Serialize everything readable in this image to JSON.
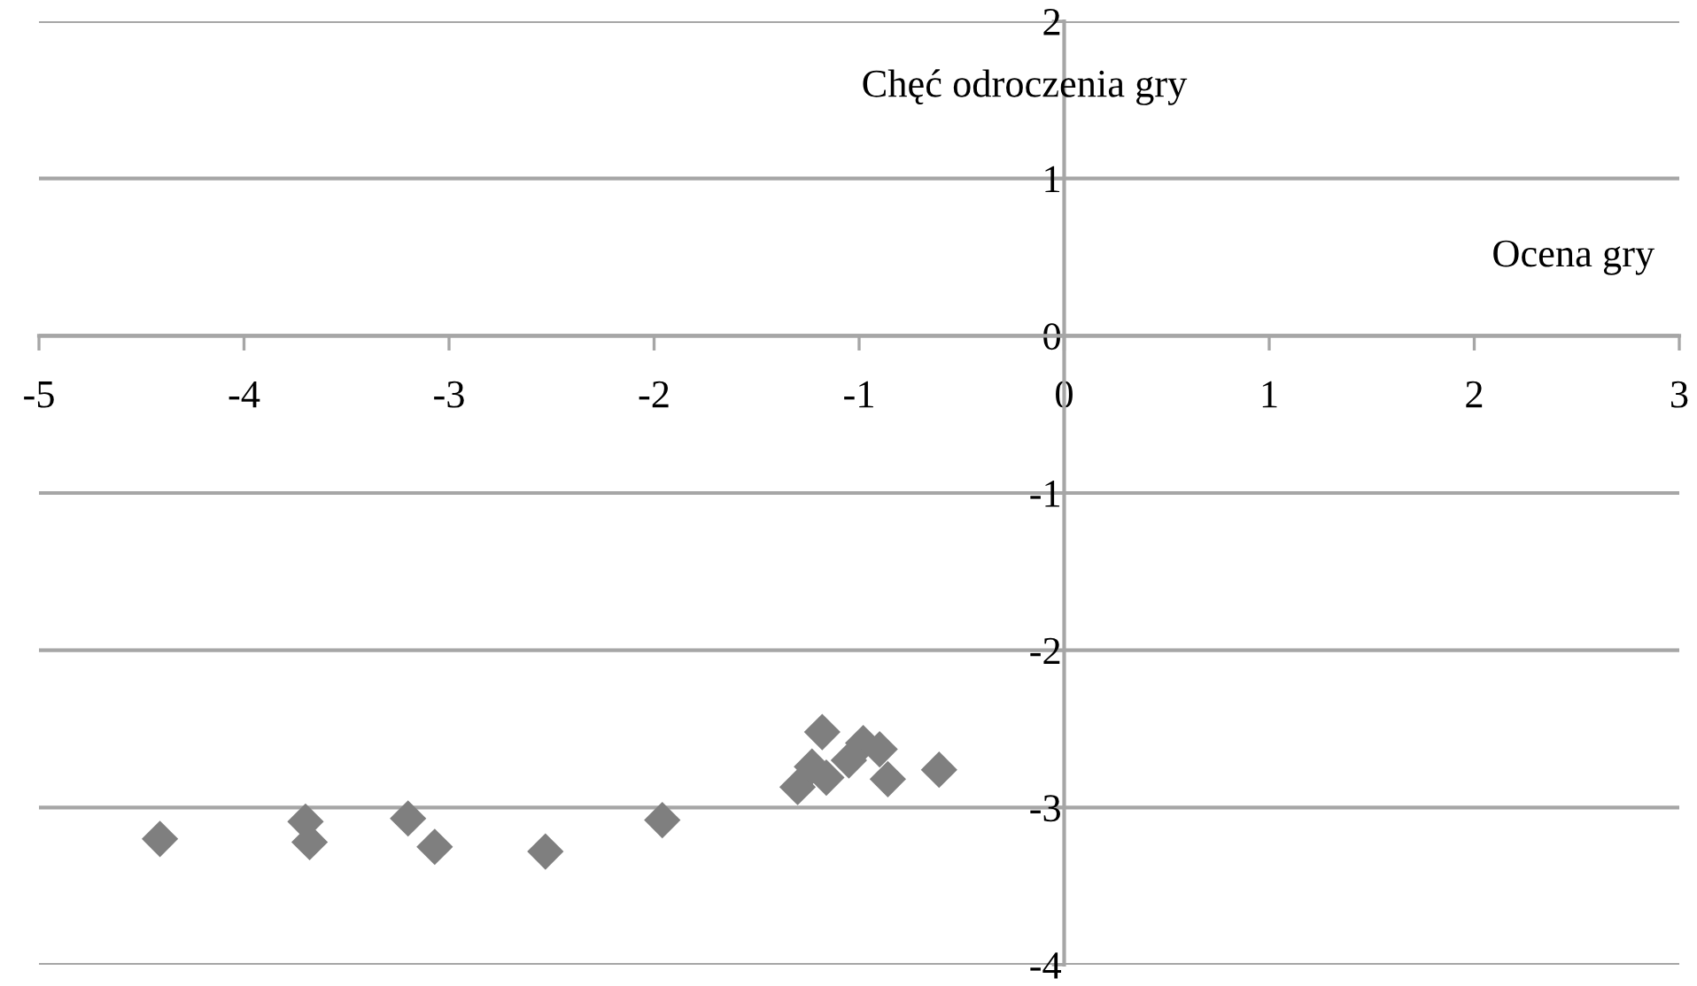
{
  "chart_data": {
    "type": "scatter",
    "xlabel": "Ocena gry",
    "ylabel": "Chęć odroczenia gry",
    "x": [
      -4.41,
      -3.7,
      -3.68,
      -3.2,
      -3.07,
      -2.53,
      -1.96,
      -1.3,
      -1.23,
      -1.18,
      -1.16,
      -1.05,
      -0.98,
      -0.9,
      -0.86,
      -0.61
    ],
    "series": [
      {
        "color": "#7f7f7f",
        "values": [
          -3.2,
          -3.09,
          -3.22,
          -3.07,
          -3.25,
          -3.28,
          -3.08,
          -2.87,
          -2.74,
          -2.52,
          -2.81,
          -2.7,
          -2.59,
          -2.63,
          -2.82,
          -2.76
        ]
      }
    ],
    "xlim": [
      -5,
      3
    ],
    "xticks": [
      -5,
      -4,
      -3,
      -2,
      -1,
      0,
      1,
      2,
      3
    ],
    "ylim": [
      -4,
      2
    ],
    "yticks": [
      -4,
      -3,
      -2,
      -1,
      0,
      1,
      2
    ],
    "grid": "y",
    "marker": "diamond",
    "legend": false
  }
}
